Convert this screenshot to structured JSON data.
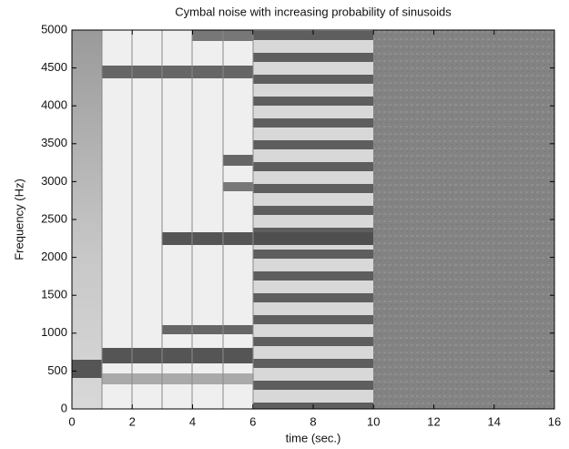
{
  "chart_data": {
    "type": "spectrogram",
    "title": "Cymbal noise with increasing probability of sinusoids",
    "x_label": "time (sec.)",
    "y_label": "Frequency (Hz)",
    "xlim": [
      0,
      16
    ],
    "ylim": [
      0,
      5000
    ],
    "xticks": [
      0,
      2,
      4,
      6,
      8,
      10,
      12,
      14,
      16
    ],
    "yticks": [
      0,
      500,
      1000,
      1500,
      2000,
      2500,
      3000,
      3500,
      4000,
      4500,
      5000
    ]
  }
}
